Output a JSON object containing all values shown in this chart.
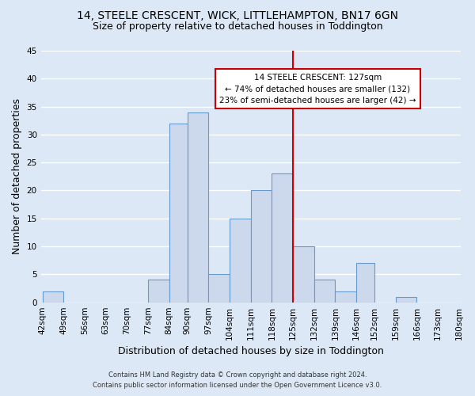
{
  "title": "14, STEELE CRESCENT, WICK, LITTLEHAMPTON, BN17 6GN",
  "subtitle": "Size of property relative to detached houses in Toddington",
  "xlabel": "Distribution of detached houses by size in Toddington",
  "ylabel": "Number of detached properties",
  "bins": [
    42,
    49,
    56,
    63,
    70,
    77,
    84,
    90,
    97,
    104,
    111,
    118,
    125,
    132,
    139,
    146,
    152,
    159,
    166,
    173,
    180
  ],
  "bar_heights": [
    2,
    0,
    0,
    0,
    0,
    4,
    32,
    34,
    5,
    15,
    20,
    23,
    10,
    4,
    2,
    7,
    0,
    1,
    0,
    0
  ],
  "bar_color": "#ccd9ed",
  "bar_edgecolor": "#6699cc",
  "tick_labels": [
    "42sqm",
    "49sqm",
    "56sqm",
    "63sqm",
    "70sqm",
    "77sqm",
    "84sqm",
    "90sqm",
    "97sqm",
    "104sqm",
    "111sqm",
    "118sqm",
    "125sqm",
    "132sqm",
    "139sqm",
    "146sqm",
    "152sqm",
    "159sqm",
    "166sqm",
    "173sqm",
    "180sqm"
  ],
  "ylim": [
    0,
    45
  ],
  "yticks": [
    0,
    5,
    10,
    15,
    20,
    25,
    30,
    35,
    40,
    45
  ],
  "red_line_x": 125,
  "red_line_color": "#cc0000",
  "annotation_title": "14 STEELE CRESCENT: 127sqm",
  "annotation_line1": "← 74% of detached houses are smaller (132)",
  "annotation_line2": "23% of semi-detached houses are larger (42) →",
  "annotation_box_facecolor": "#ffffff",
  "annotation_box_edgecolor": "#cc0000",
  "bg_color": "#dce8f5",
  "plot_bg_color": "#dce8f5",
  "footer_line1": "Contains HM Land Registry data © Crown copyright and database right 2024.",
  "footer_line2": "Contains public sector information licensed under the Open Government Licence v3.0.",
  "title_fontsize": 10,
  "subtitle_fontsize": 9,
  "axis_label_fontsize": 9,
  "tick_fontsize": 7.5,
  "grid_color": "#ffffff",
  "grid_linewidth": 1.0
}
